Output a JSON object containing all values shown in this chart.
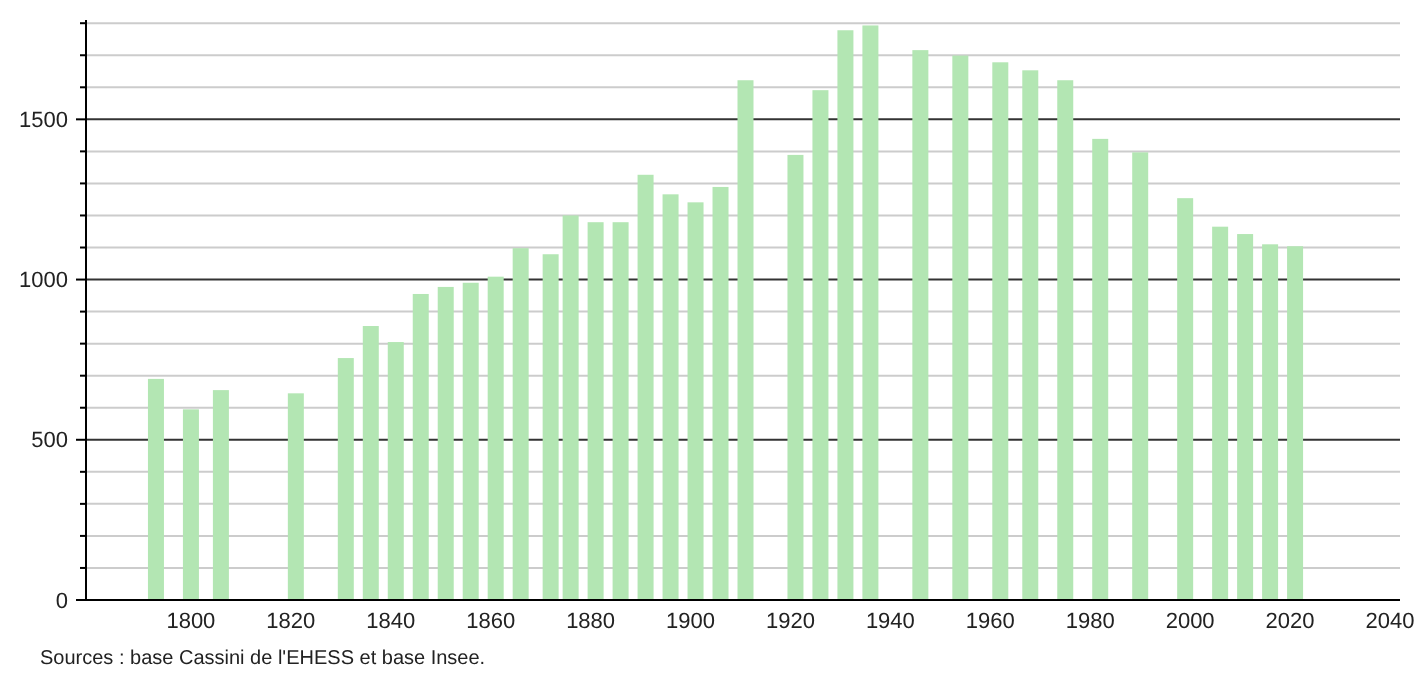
{
  "chart_data": {
    "type": "bar",
    "x": [
      1793,
      1800,
      1806,
      1821,
      1831,
      1836,
      1841,
      1846,
      1851,
      1856,
      1861,
      1866,
      1872,
      1876,
      1881,
      1886,
      1891,
      1896,
      1901,
      1906,
      1911,
      1921,
      1926,
      1931,
      1936,
      1946,
      1954,
      1962,
      1968,
      1975,
      1982,
      1990,
      1999,
      2006,
      2011,
      2016,
      2021
    ],
    "values": [
      690,
      595,
      655,
      645,
      755,
      855,
      805,
      955,
      977,
      990,
      1009,
      1098,
      1079,
      1200,
      1179,
      1179,
      1327,
      1266,
      1241,
      1289,
      1622,
      1389,
      1591,
      1778,
      1793,
      1716,
      1699,
      1678,
      1653,
      1622,
      1439,
      1397,
      1254,
      1165,
      1142,
      1110,
      1104
    ],
    "color": "#b3e6b3",
    "xlim": [
      1779,
      2042
    ],
    "xticks": [
      1800,
      1820,
      1840,
      1860,
      1880,
      1900,
      1920,
      1940,
      1960,
      1980,
      2000,
      2020,
      2040
    ],
    "ylim": [
      0,
      1810
    ],
    "yticks": [
      0,
      {
        "value": 100,
        "label": null
      },
      {
        "value": 200,
        "label": null
      },
      {
        "value": 300,
        "label": null
      },
      {
        "value": 400,
        "label": null
      },
      500,
      {
        "value": 600,
        "label": null
      },
      {
        "value": 700,
        "label": null
      },
      {
        "value": 800,
        "label": null
      },
      {
        "value": 900,
        "label": null
      },
      1000,
      {
        "value": 1100,
        "label": null
      },
      {
        "value": 1200,
        "label": null
      },
      {
        "value": 1300,
        "label": null
      },
      {
        "value": 1400,
        "label": null
      },
      1500,
      {
        "value": 1600,
        "label": null
      },
      {
        "value": 1700,
        "label": null
      },
      {
        "value": 1800,
        "label": null
      }
    ],
    "grid": "y",
    "annotations": [
      "Sources : base Cassini de l'EHESS et base Insee."
    ]
  }
}
